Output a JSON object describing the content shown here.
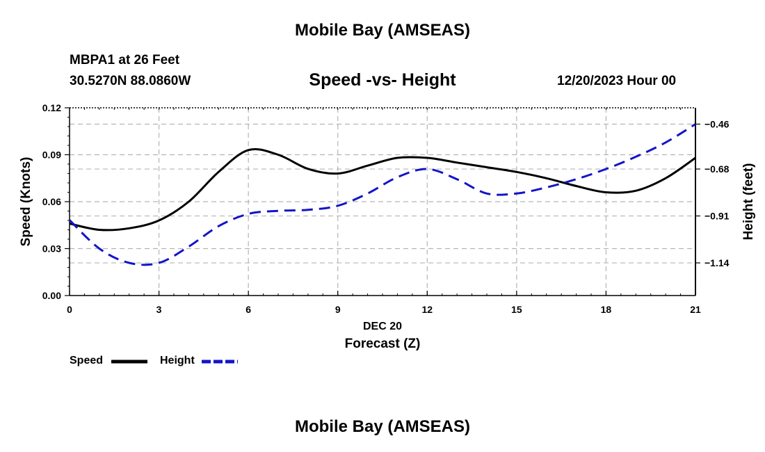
{
  "page": {
    "title_top": "Mobile Bay (AMSEAS)",
    "title_bottom": "Mobile Bay (AMSEAS)",
    "station": "MBPA1 at 26 Feet",
    "coords": "30.5270N  88.0860W",
    "datetime": "12/20/2023 Hour 00"
  },
  "legend": {
    "speed_label": "Speed",
    "height_label": "Height"
  },
  "colors": {
    "speed": "#000000",
    "height": "#1414c8",
    "grid": "#b4b4b4"
  },
  "chart_data": {
    "type": "line",
    "title": "Speed -vs- Height",
    "xlabel": "Forecast (Z)",
    "xlabel_sub": "DEC 20",
    "ylabel": "Speed (Knots)",
    "y2label": "Height (feet)",
    "xlim": [
      0,
      21
    ],
    "ylim": [
      0,
      0.12
    ],
    "y2lim": [
      -1.3,
      -0.38
    ],
    "x_ticks": [
      0,
      3,
      6,
      9,
      12,
      15,
      18,
      21
    ],
    "x_tick_labels": [
      "0",
      "3",
      "6",
      "9",
      "12",
      "15",
      "18",
      "21"
    ],
    "y_ticks": [
      0,
      0.03,
      0.06,
      0.09,
      0.12
    ],
    "y_tick_labels": [
      "0.00",
      "0.03",
      "0.06",
      "0.09",
      "0.12"
    ],
    "y2_ticks": [
      -1.14,
      -0.91,
      -0.68,
      -0.46
    ],
    "y2_tick_labels": [
      "−1.14",
      "−0.91",
      "−0.68",
      "−0.46"
    ],
    "grid": true,
    "series": [
      {
        "name": "Speed",
        "axis": "left",
        "style": "solid",
        "x": [
          0,
          1,
          2,
          3,
          4,
          5,
          6,
          7,
          8,
          9,
          10,
          11,
          12,
          13,
          14,
          15,
          16,
          17,
          18,
          19,
          20,
          21
        ],
        "values": [
          0.046,
          0.042,
          0.043,
          0.048,
          0.06,
          0.079,
          0.093,
          0.09,
          0.081,
          0.078,
          0.083,
          0.088,
          0.088,
          0.085,
          0.082,
          0.079,
          0.075,
          0.07,
          0.066,
          0.067,
          0.075,
          0.088
        ]
      },
      {
        "name": "Height",
        "axis": "right",
        "style": "dashed",
        "x": [
          0,
          1,
          2,
          3,
          4,
          5,
          6,
          7,
          8,
          9,
          10,
          11,
          12,
          13,
          14,
          15,
          16,
          17,
          18,
          19,
          20,
          21
        ],
        "values": [
          -0.93,
          -1.07,
          -1.14,
          -1.14,
          -1.06,
          -0.96,
          -0.9,
          -0.885,
          -0.88,
          -0.86,
          -0.8,
          -0.72,
          -0.68,
          -0.73,
          -0.8,
          -0.8,
          -0.77,
          -0.73,
          -0.68,
          -0.62,
          -0.55,
          -0.46
        ]
      }
    ]
  }
}
